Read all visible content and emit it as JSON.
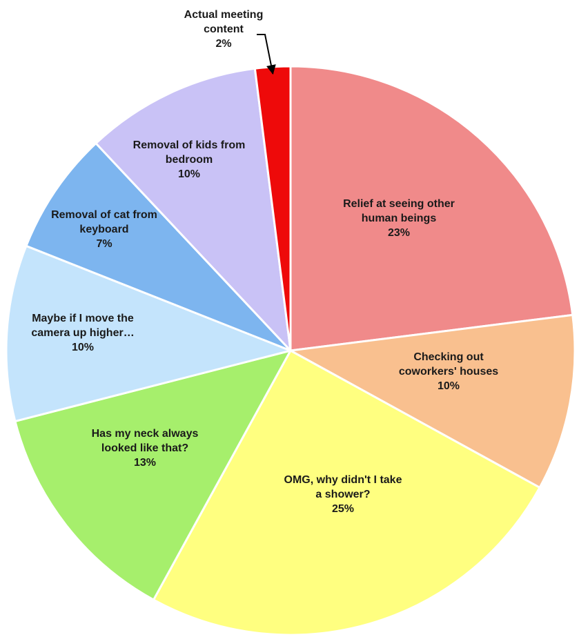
{
  "chart_data": {
    "type": "pie",
    "title": "",
    "start_angle_deg": 0,
    "direction": "clockwise",
    "slices": [
      {
        "label_lines": [
          "Relief at seeing other",
          "human beings"
        ],
        "value": 23,
        "value_label": "23%",
        "color": "#f08a8a"
      },
      {
        "label_lines": [
          "Checking out",
          "coworkers' houses"
        ],
        "value": 10,
        "value_label": "10%",
        "color": "#f9c08f"
      },
      {
        "label_lines": [
          "OMG, why didn't I take",
          "a shower?"
        ],
        "value": 25,
        "value_label": "25%",
        "color": "#ffff80"
      },
      {
        "label_lines": [
          "Has my neck always",
          "looked like that?"
        ],
        "value": 13,
        "value_label": "13%",
        "color": "#a6ef6c"
      },
      {
        "label_lines": [
          "Maybe if I move the",
          "camera up higher…"
        ],
        "value": 10,
        "value_label": "10%",
        "color": "#c4e4fc"
      },
      {
        "label_lines": [
          "Removal of cat from",
          "keyboard"
        ],
        "value": 7,
        "value_label": "7%",
        "color": "#7db5ef"
      },
      {
        "label_lines": [
          "Removal of kids from",
          "bedroom"
        ],
        "value": 10,
        "value_label": "10%",
        "color": "#c9c2f6"
      },
      {
        "label_lines": [
          "Actual meeting",
          "content"
        ],
        "value": 2,
        "value_label": "2%",
        "color": "#ee0a0a"
      }
    ]
  }
}
